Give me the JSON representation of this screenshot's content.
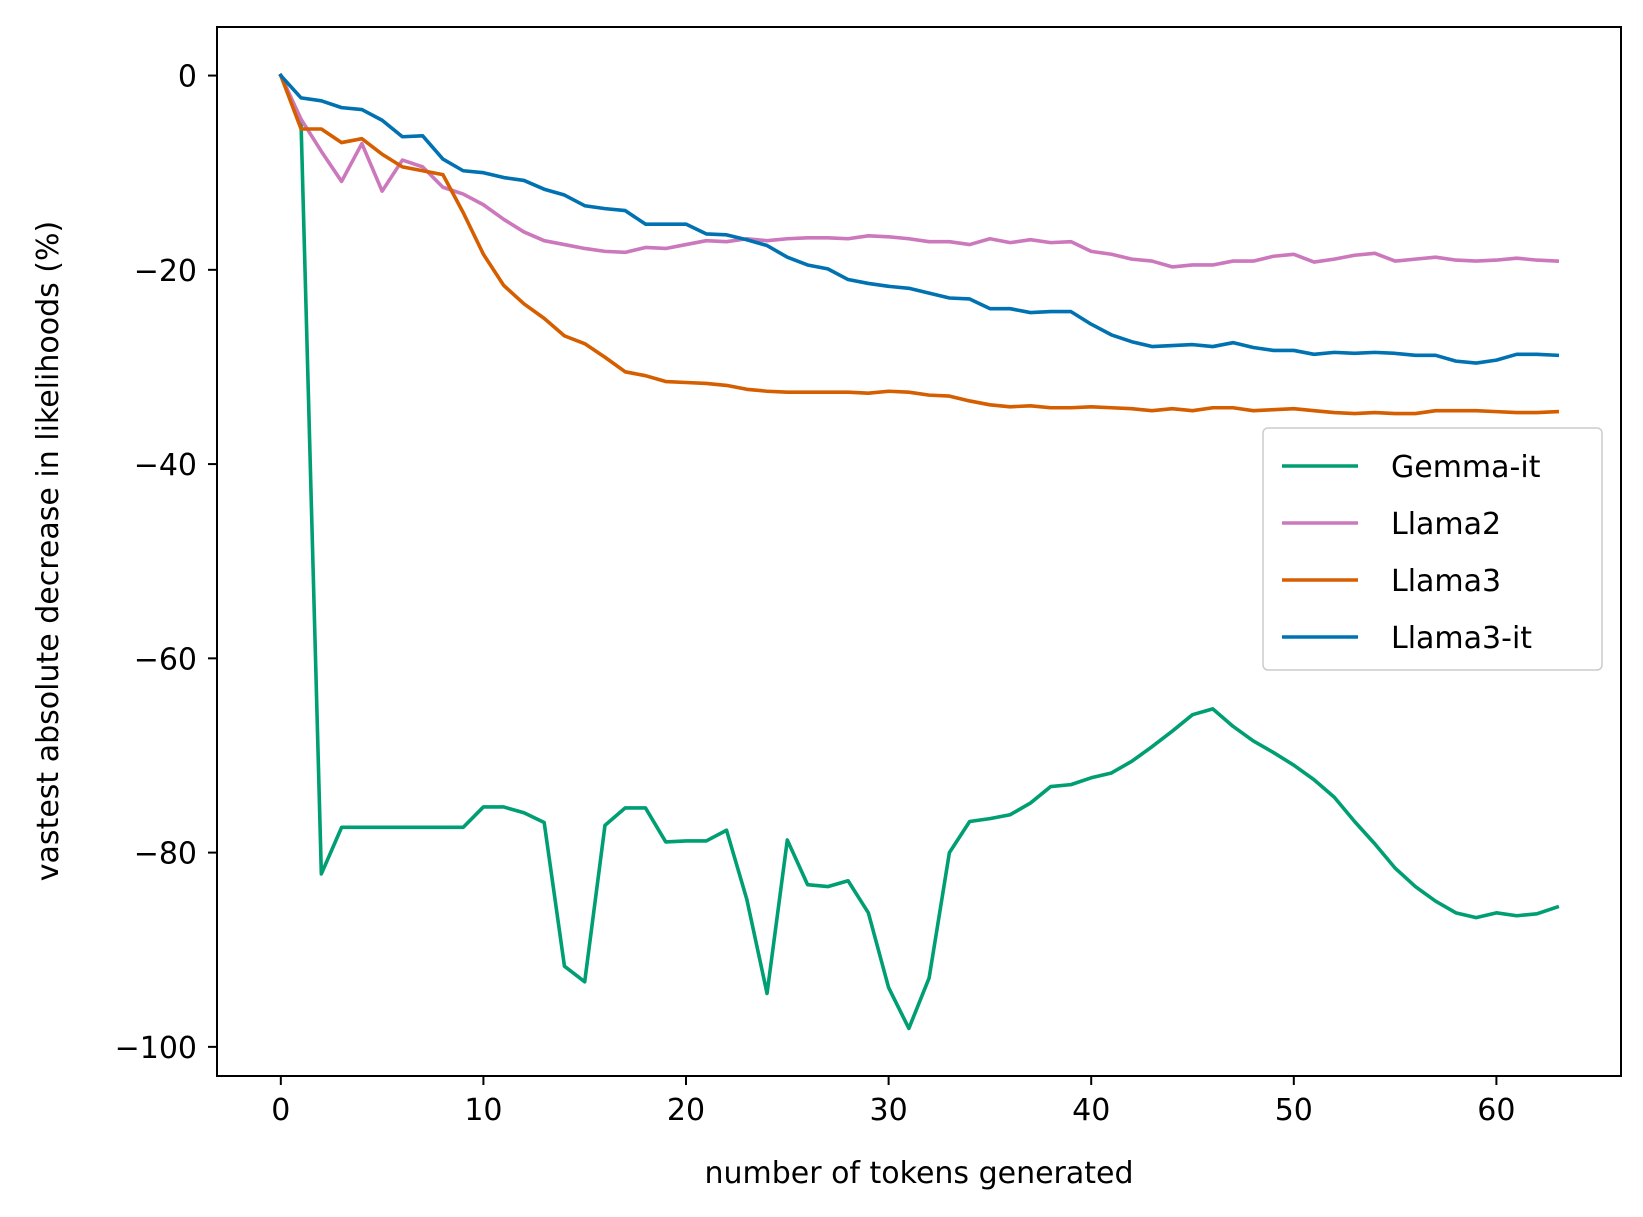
{
  "chart_data": {
    "type": "line",
    "title": "",
    "xlabel": "number of tokens generated",
    "ylabel": "vastest absolute decrease in likelihoods (%)",
    "xlim": [
      -3.15,
      66.15
    ],
    "ylim": [
      -103,
      5
    ],
    "xticks": [
      0,
      10,
      20,
      30,
      40,
      50,
      60
    ],
    "yticks": [
      0,
      -20,
      -40,
      -60,
      -80,
      -100
    ],
    "xtick_labels": [
      "0",
      "10",
      "20",
      "30",
      "40",
      "50",
      "60"
    ],
    "ytick_labels": [
      "0",
      "−20",
      "−40",
      "−60",
      "−80",
      "−100"
    ],
    "grid": false,
    "legend_position": "center-right",
    "x": [
      0,
      1,
      2,
      3,
      4,
      5,
      6,
      7,
      8,
      9,
      10,
      11,
      12,
      13,
      14,
      15,
      16,
      17,
      18,
      19,
      20,
      21,
      22,
      23,
      24,
      25,
      26,
      27,
      28,
      29,
      30,
      31,
      32,
      33,
      34,
      35,
      36,
      37,
      38,
      39,
      40,
      41,
      42,
      43,
      44,
      45,
      46,
      47,
      48,
      49,
      50,
      51,
      52,
      53,
      54,
      55,
      56,
      57,
      58,
      59,
      60,
      61,
      62,
      63
    ],
    "series": [
      {
        "name": "Gemma-it",
        "color": "#009e73",
        "values": [
          0,
          -5,
          -82.2,
          -77.4,
          -77.4,
          -77.4,
          -77.4,
          -77.4,
          -77.4,
          -77.4,
          -75.3,
          -75.3,
          -75.9,
          -76.9,
          -91.7,
          -93.3,
          -77.2,
          -75.4,
          -75.4,
          -78.9,
          -78.8,
          -78.8,
          -77.7,
          -84.8,
          -94.5,
          -78.7,
          -83.3,
          -83.5,
          -82.9,
          -86.2,
          -93.9,
          -98.1,
          -92.9,
          -80.0,
          -76.8,
          -76.5,
          -76.1,
          -74.9,
          -73.2,
          -73.0,
          -72.3,
          -71.8,
          -70.6,
          -69.1,
          -67.5,
          -65.8,
          -65.2,
          -67.0,
          -68.5,
          -69.7,
          -71.0,
          -72.5,
          -74.3,
          -76.8,
          -79.1,
          -81.6,
          -83.5,
          -85.0,
          -86.2,
          -86.7,
          -86.2,
          -86.5,
          -86.3,
          -85.6
        ]
      },
      {
        "name": "Llama2",
        "color": "#cc78bc",
        "values": [
          0,
          -4.5,
          -7.8,
          -10.9,
          -7.0,
          -11.9,
          -8.7,
          -9.4,
          -11.5,
          -12.2,
          -13.3,
          -14.8,
          -16.1,
          -17.0,
          -17.4,
          -17.8,
          -18.1,
          -18.2,
          -17.7,
          -17.8,
          -17.4,
          -17.0,
          -17.1,
          -16.8,
          -17.0,
          -16.8,
          -16.7,
          -16.7,
          -16.8,
          -16.5,
          -16.6,
          -16.8,
          -17.1,
          -17.1,
          -17.4,
          -16.8,
          -17.2,
          -16.9,
          -17.2,
          -17.1,
          -18.1,
          -18.4,
          -18.9,
          -19.1,
          -19.7,
          -19.5,
          -19.5,
          -19.1,
          -19.1,
          -18.6,
          -18.4,
          -19.2,
          -18.9,
          -18.5,
          -18.3,
          -19.1,
          -18.9,
          -18.7,
          -19.0,
          -19.1,
          -19.0,
          -18.8,
          -19.0,
          -19.1
        ]
      },
      {
        "name": "Llama3",
        "color": "#d55e00",
        "values": [
          0,
          -5.5,
          -5.5,
          -6.9,
          -6.5,
          -8.1,
          -9.4,
          -9.8,
          -10.2,
          -14.1,
          -18.4,
          -21.6,
          -23.5,
          -25.0,
          -26.8,
          -27.6,
          -29.0,
          -30.5,
          -30.9,
          -31.5,
          -31.6,
          -31.7,
          -31.9,
          -32.3,
          -32.5,
          -32.6,
          -32.6,
          -32.6,
          -32.6,
          -32.7,
          -32.5,
          -32.6,
          -32.9,
          -33.0,
          -33.5,
          -33.9,
          -34.1,
          -34.0,
          -34.2,
          -34.2,
          -34.1,
          -34.2,
          -34.3,
          -34.5,
          -34.3,
          -34.5,
          -34.2,
          -34.2,
          -34.5,
          -34.4,
          -34.3,
          -34.5,
          -34.7,
          -34.8,
          -34.7,
          -34.8,
          -34.8,
          -34.5,
          -34.5,
          -34.5,
          -34.6,
          -34.7,
          -34.7,
          -34.6
        ]
      },
      {
        "name": "Llama3-it",
        "color": "#0072b2",
        "values": [
          0,
          -2.3,
          -2.6,
          -3.3,
          -3.5,
          -4.6,
          -6.3,
          -6.2,
          -8.6,
          -9.8,
          -10.0,
          -10.5,
          -10.8,
          -11.7,
          -12.3,
          -13.4,
          -13.7,
          -13.9,
          -15.3,
          -15.3,
          -15.3,
          -16.3,
          -16.4,
          -16.9,
          -17.5,
          -18.7,
          -19.5,
          -19.9,
          -21.0,
          -21.4,
          -21.7,
          -21.9,
          -22.4,
          -22.9,
          -23.0,
          -24.0,
          -24.0,
          -24.4,
          -24.3,
          -24.3,
          -25.6,
          -26.7,
          -27.4,
          -27.9,
          -27.8,
          -27.7,
          -27.9,
          -27.5,
          -28.0,
          -28.3,
          -28.3,
          -28.7,
          -28.5,
          -28.6,
          -28.5,
          -28.6,
          -28.8,
          -28.8,
          -29.4,
          -29.6,
          -29.3,
          -28.7,
          -28.7,
          -28.8
        ]
      }
    ]
  }
}
